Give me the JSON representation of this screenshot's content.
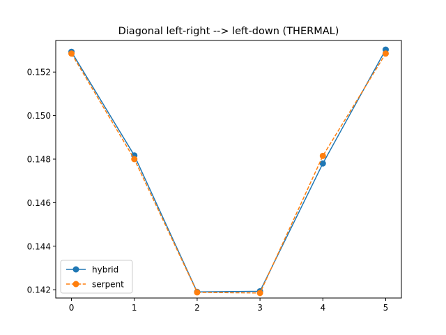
{
  "chart_data": {
    "type": "line",
    "title": "Diagonal left-right --> left-down (THERMAL)",
    "xlabel": "",
    "ylabel": "",
    "x": [
      0,
      1,
      2,
      3,
      4,
      5
    ],
    "xticks": [
      "0",
      "1",
      "2",
      "3",
      "4",
      "5"
    ],
    "yticks": [
      "0.142",
      "0.144",
      "0.146",
      "0.148",
      "0.150",
      "0.152"
    ],
    "ytick_values": [
      0.142,
      0.144,
      0.146,
      0.148,
      0.15,
      0.152
    ],
    "xlim": [
      -0.25,
      5.25
    ],
    "ylim": [
      0.14162,
      0.15345
    ],
    "grid": false,
    "legend_position": "lower-left",
    "series": [
      {
        "name": "hybrid",
        "values": [
          0.15293,
          0.14817,
          0.1419,
          0.14193,
          0.1478,
          0.15303
        ],
        "color": "#1f77b4",
        "line_style": "solid",
        "marker": "circle"
      },
      {
        "name": "serpent",
        "values": [
          0.15285,
          0.148,
          0.14188,
          0.14185,
          0.14815,
          0.15285
        ],
        "color": "#ff7f0e",
        "line_style": "dashed",
        "marker": "circle"
      }
    ]
  }
}
